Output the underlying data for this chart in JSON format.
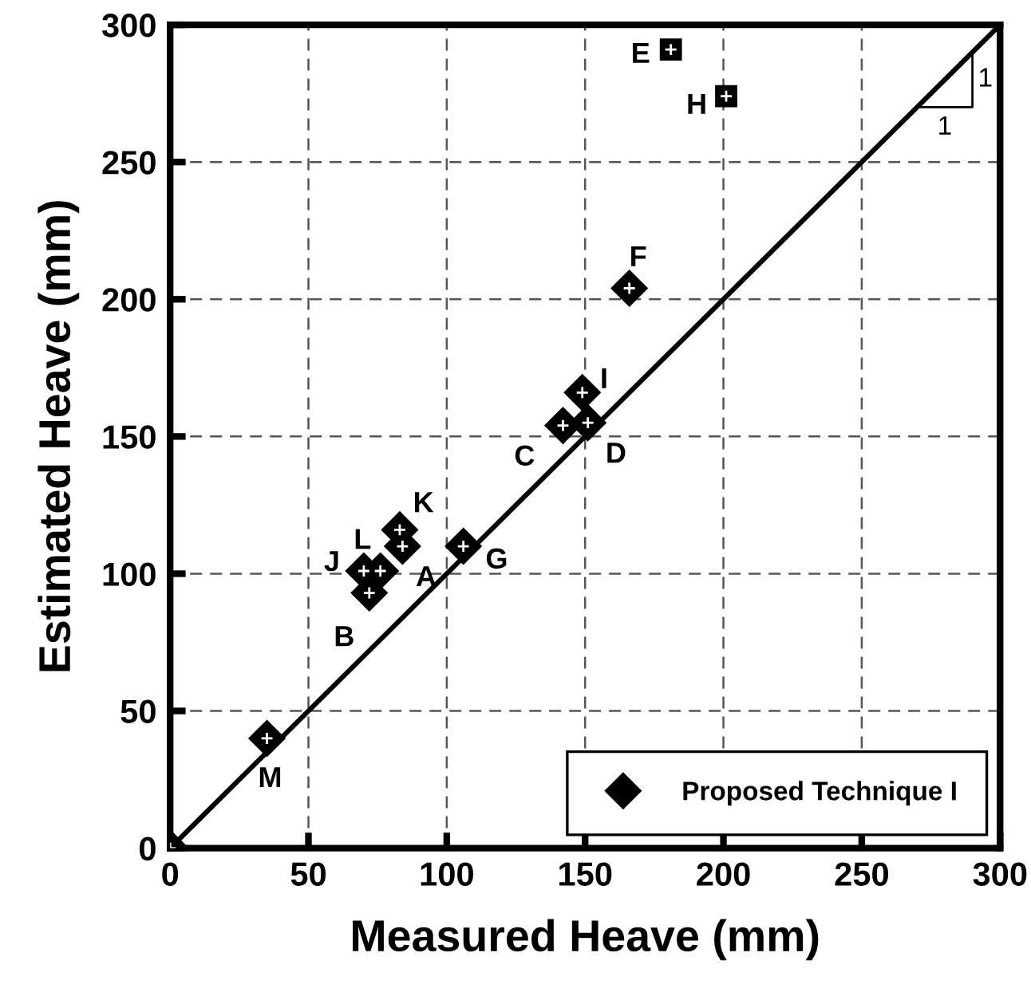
{
  "chart_data": {
    "type": "scatter",
    "xlabel": "Measured Heave (mm)",
    "ylabel": "Estimated Heave (mm)",
    "xlim": [
      0,
      300
    ],
    "ylim": [
      0,
      300
    ],
    "xticks": [
      0,
      50,
      100,
      150,
      200,
      250,
      300
    ],
    "yticks": [
      0,
      50,
      100,
      150,
      200,
      250,
      300
    ],
    "grid": true,
    "legend": "bottom right",
    "series": [
      {
        "name": "Proposed Technique I",
        "color": "#000000",
        "marker": "diamond",
        "x": [
          0,
          35,
          70,
          72,
          76,
          83,
          84,
          106,
          142,
          149,
          151,
          166
        ],
        "values": [
          0,
          40,
          101,
          93,
          101,
          116,
          110,
          110,
          154,
          166,
          155,
          204
        ]
      },
      {
        "color": "#000000",
        "marker": "square",
        "x": [
          181,
          201
        ],
        "values": [
          291,
          274
        ]
      },
      {
        "type": "line",
        "color": "#000000",
        "marker": "none",
        "x": [
          0,
          300
        ],
        "values": [
          0,
          300
        ]
      }
    ],
    "annotations": [
      {
        "text": "A",
        "x": 84,
        "y": 110
      },
      {
        "text": "B",
        "x": 72,
        "y": 93
      },
      {
        "text": "C",
        "x": 142,
        "y": 154
      },
      {
        "text": "D",
        "x": 151,
        "y": 155
      },
      {
        "text": "E",
        "x": 181,
        "y": 291
      },
      {
        "text": "F",
        "x": 166,
        "y": 204
      },
      {
        "text": "G",
        "x": 106,
        "y": 110
      },
      {
        "text": "H",
        "x": 201,
        "y": 274
      },
      {
        "text": "I",
        "x": 149,
        "y": 166
      },
      {
        "text": "J",
        "x": 70,
        "y": 101
      },
      {
        "text": "K",
        "x": 83,
        "y": 116
      },
      {
        "text": "L",
        "x": 76,
        "y": 101
      },
      {
        "text": "M",
        "x": 35,
        "y": 40
      },
      "1",
      "1"
    ]
  }
}
